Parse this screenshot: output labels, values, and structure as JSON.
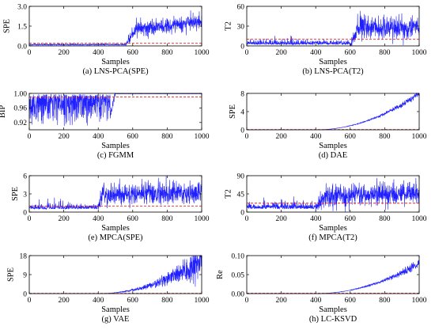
{
  "chart_data": [
    {
      "type": "line",
      "caption": "(a) LNS-PCA(SPE)",
      "xlabel": "Samples",
      "ylabel": "SPE",
      "xlim": [
        0,
        1000
      ],
      "ylim": [
        0,
        3.0
      ],
      "xticks": [
        0,
        200,
        400,
        600,
        800,
        1000
      ],
      "yticks": [
        "0.0",
        "1.5",
        "3.0"
      ],
      "threshold": 0.2,
      "profile": {
        "kind": "step",
        "start": 560,
        "ramp_end": 620,
        "before": [
          0.06,
          0.04
        ],
        "after": [
          1.25,
          1.75
        ],
        "noise_before": 0.05,
        "noise_after": 0.3,
        "spike_before": 0
      },
      "seed": 11
    },
    {
      "type": "line",
      "caption": "(b) LNS-PCA(T2)",
      "xlabel": "Samples",
      "ylabel": "T2",
      "xlim": [
        0,
        1000
      ],
      "ylim": [
        0,
        60
      ],
      "xticks": [
        0,
        200,
        400,
        600,
        800,
        1000
      ],
      "yticks": [
        "0",
        "30",
        "60"
      ],
      "threshold": 10,
      "profile": {
        "kind": "step",
        "start": 600,
        "ramp_end": 650,
        "before": [
          2,
          2
        ],
        "after": [
          28,
          26
        ],
        "noise_before": 3,
        "noise_after": 8,
        "spike_before": 14
      },
      "seed": 23
    },
    {
      "type": "line",
      "caption": "(c) FGMM",
      "xlabel": "Samples",
      "ylabel": "BIP",
      "xlim": [
        0,
        1000
      ],
      "ylim": [
        0.9,
        1.0
      ],
      "xticks": [
        0,
        200,
        400,
        600,
        800,
        1000
      ],
      "yticks": [
        "0.92",
        "0.96",
        "1.00"
      ],
      "threshold": 0.99,
      "profile": {
        "kind": "bip",
        "start": 470,
        "ramp_end": 500,
        "value_after": 0.999
      },
      "seed": 37
    },
    {
      "type": "line",
      "caption": "(d) DAE",
      "xlabel": "Samples",
      "ylabel": "SPE",
      "xlim": [
        0,
        1000
      ],
      "ylim": [
        0,
        8
      ],
      "xticks": [
        0,
        200,
        400,
        600,
        800,
        1000
      ],
      "yticks": [
        "0",
        "4",
        "8"
      ],
      "threshold": 0.05,
      "profile": {
        "kind": "quad",
        "start": 400,
        "end_value": 8.0,
        "noise_rel": 0.02
      },
      "seed": 41
    },
    {
      "type": "line",
      "caption": "(e) MPCA(SPE)",
      "xlabel": "Samples",
      "ylabel": "SPE",
      "xlim": [
        0,
        1000
      ],
      "ylim": [
        0,
        6
      ],
      "xticks": [
        0,
        200,
        400,
        600,
        800,
        1000
      ],
      "yticks": [
        "0",
        "3",
        "6"
      ],
      "threshold": 1.0,
      "profile": {
        "kind": "step",
        "start": 400,
        "ramp_end": 420,
        "before": [
          0.5,
          0.5
        ],
        "after": [
          2.8,
          3.2
        ],
        "noise_before": 0.35,
        "noise_after": 0.9,
        "spike_before": 1.6
      },
      "seed": 53
    },
    {
      "type": "line",
      "caption": "(f) MPCA(T2)",
      "xlabel": "Samples",
      "ylabel": "T2",
      "xlim": [
        0,
        1000
      ],
      "ylim": [
        0,
        90
      ],
      "xticks": [
        0,
        200,
        400,
        600,
        800,
        1000
      ],
      "yticks": [
        "0",
        "45",
        "90"
      ],
      "threshold": 22,
      "profile": {
        "kind": "step",
        "start": 400,
        "ramp_end": 450,
        "before": [
          8,
          8
        ],
        "after": [
          38,
          45
        ],
        "noise_before": 6,
        "noise_after": 14,
        "spike_before": 22
      },
      "seed": 67
    },
    {
      "type": "line",
      "caption": "(g) VAE",
      "xlabel": "Samples",
      "ylabel": "SPE",
      "xlim": [
        0,
        1000
      ],
      "ylim": [
        0,
        18
      ],
      "xticks": [
        0,
        200,
        400,
        600,
        800,
        1000
      ],
      "yticks": [
        "0",
        "9",
        "18"
      ],
      "threshold": 0.1,
      "profile": {
        "kind": "quad",
        "start": 400,
        "end_value": 15.5,
        "noise_rel": 0.1
      },
      "seed": 79
    },
    {
      "type": "line",
      "caption": "(h) LC-KSVD",
      "xlabel": "Samples",
      "ylabel": "Re",
      "xlim": [
        0,
        1000
      ],
      "ylim": [
        0,
        0.1
      ],
      "xticks": [
        0,
        200,
        400,
        600,
        800,
        1000
      ],
      "yticks": [
        "0.00",
        "0.05",
        "0.10"
      ],
      "threshold": 0.001,
      "profile": {
        "kind": "quad",
        "start": 400,
        "end_value": 0.08,
        "noise_rel": 0.03
      },
      "seed": 97
    }
  ]
}
